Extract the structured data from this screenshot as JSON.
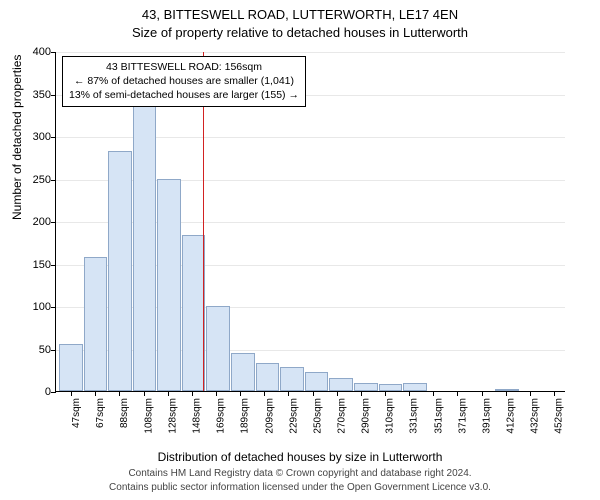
{
  "title": {
    "line1": "43, BITTESWELL ROAD, LUTTERWORTH, LE17 4EN",
    "line2": "Size of property relative to detached houses in Lutterworth"
  },
  "y_axis": {
    "label": "Number of detached properties",
    "max": 400,
    "ticks": [
      0,
      50,
      100,
      150,
      200,
      250,
      300,
      350,
      400
    ]
  },
  "x_axis": {
    "label": "Distribution of detached houses by size in Lutterworth",
    "categories": [
      "47sqm",
      "67sqm",
      "88sqm",
      "108sqm",
      "128sqm",
      "148sqm",
      "169sqm",
      "189sqm",
      "209sqm",
      "229sqm",
      "250sqm",
      "270sqm",
      "290sqm",
      "310sqm",
      "331sqm",
      "351sqm",
      "371sqm",
      "391sqm",
      "412sqm",
      "432sqm",
      "452sqm"
    ]
  },
  "bars": {
    "values": [
      55,
      158,
      282,
      345,
      250,
      183,
      100,
      45,
      33,
      28,
      22,
      15,
      10,
      8,
      10,
      0,
      0,
      0,
      2,
      0,
      0
    ],
    "fill_color": "#d6e4f5",
    "stroke_color": "#8fa8c8"
  },
  "reference_line": {
    "x_index_after": 5,
    "color": "#d22222"
  },
  "info_box": {
    "line1": "43 BITTESWELL ROAD: 156sqm",
    "line2": "← 87% of detached houses are smaller (1,041)",
    "line3": "13% of semi-detached houses are larger (155) →"
  },
  "footer": {
    "line1": "Contains HM Land Registry data © Crown copyright and database right 2024.",
    "line2": "Contains public sector information licensed under the Open Government Licence v3.0."
  },
  "style": {
    "background": "#ffffff",
    "grid_color": "#e8e8e8",
    "axis_color": "#000000",
    "title_fontsize": 13,
    "axis_label_fontsize": 12,
    "tick_fontsize": 11,
    "x_tick_fontsize": 10,
    "info_fontsize": 10.5,
    "footer_fontsize": 10
  }
}
